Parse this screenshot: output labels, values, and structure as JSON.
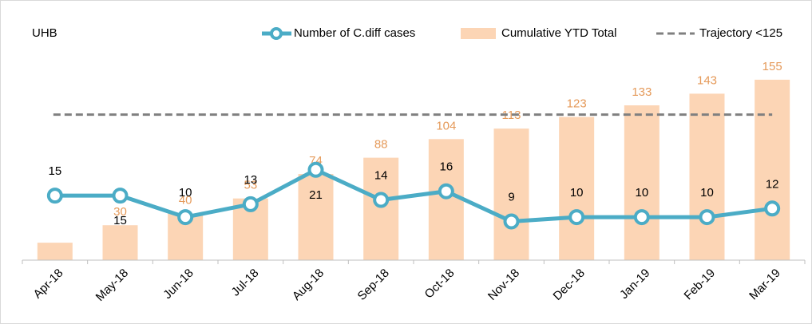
{
  "chart_data": {
    "type": "combo",
    "title": "UHB",
    "categories": [
      "Apr-18",
      "May-18",
      "Jun-18",
      "Jul-18",
      "Aug-18",
      "Sep-18",
      "Oct-18",
      "Nov-18",
      "Dec-18",
      "Jan-19",
      "Feb-19",
      "Mar-19"
    ],
    "series": [
      {
        "name": "Number of C.diff cases",
        "type": "line",
        "axis": "y2",
        "color": "#4bacc6",
        "values": [
          15,
          15,
          10,
          13,
          21,
          14,
          16,
          9,
          10,
          10,
          10,
          12
        ]
      },
      {
        "name": "Cumulative YTD Total",
        "type": "bar",
        "color": "#fcd5b5",
        "values": [
          15,
          30,
          40,
          53,
          74,
          88,
          104,
          113,
          123,
          133,
          143,
          155
        ],
        "value_labels": [
          null,
          "30",
          "40",
          "53",
          "74",
          "88",
          "104",
          "113",
          "123",
          "133",
          "143",
          "155"
        ]
      },
      {
        "name": "Trajectory <125",
        "type": "reference",
        "color": "#808080",
        "value": 125
      }
    ],
    "ylim": [
      0,
      170
    ],
    "y2lim": [
      0,
      46
    ],
    "legend": "top-right"
  }
}
